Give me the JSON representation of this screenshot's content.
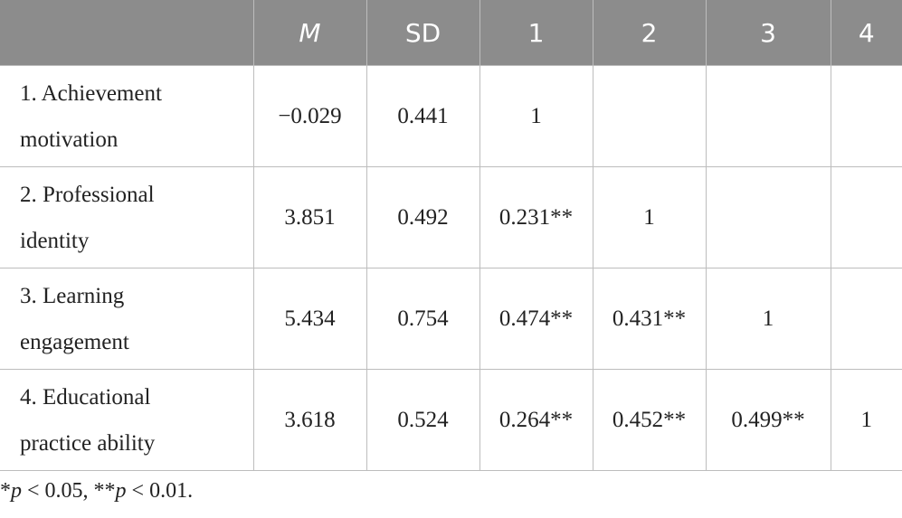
{
  "table": {
    "header": [
      "M",
      "SD",
      "1",
      "2",
      "3",
      "4"
    ],
    "rows": [
      [
        "1. Achievement motivation",
        "−0.029",
        "0.441",
        "1"
      ],
      [
        "2. Professional identity",
        "3.851",
        "0.492",
        "0.231**",
        "1"
      ],
      [
        "3. Learning engagement",
        "5.434",
        "0.754",
        "0.474**",
        "0.431**",
        "1"
      ],
      [
        "4. Educational practice ability",
        "3.618",
        "0.524",
        "0.264**",
        "0.452**",
        "0.499**",
        "1"
      ]
    ]
  },
  "footnote": [
    "*",
    "p",
    " < 0.05, **",
    "p",
    " < 0.01."
  ]
}
